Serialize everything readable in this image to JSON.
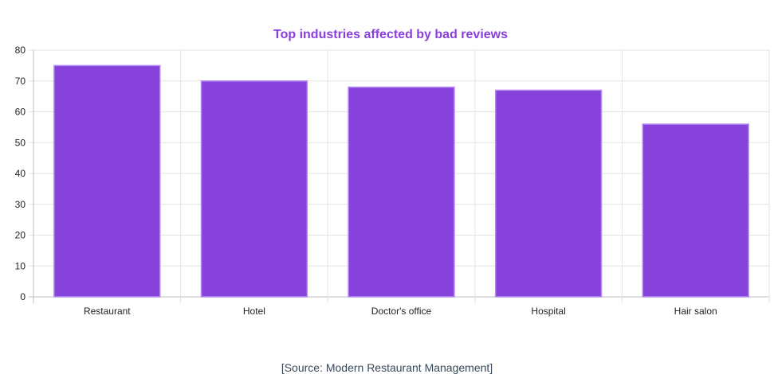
{
  "chart_data": {
    "type": "bar",
    "title": "Top industries affected by bad reviews",
    "categories": [
      "Restaurant",
      "Hotel",
      "Doctor's office",
      "Hospital",
      "Hair salon"
    ],
    "values": [
      75,
      70,
      68,
      67,
      56
    ],
    "xlabel": "",
    "ylabel": "",
    "ylim": [
      0,
      80
    ],
    "yticks": [
      0,
      10,
      20,
      30,
      40,
      50,
      60,
      70,
      80
    ],
    "grid": true,
    "legend": "none"
  },
  "colors": {
    "title": "#8a3fdc",
    "bar_fill": "#8742dc",
    "bar_stroke": "#b58cf0",
    "grid": "#e3e3e3",
    "axis": "#bdbdbd"
  },
  "source_text": "[Source: Modern Restaurant Management]"
}
